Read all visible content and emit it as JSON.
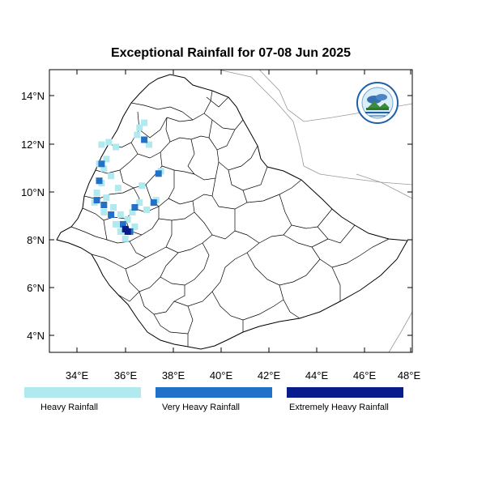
{
  "title": "Exceptional Rainfall for 07-08 Jun 2025",
  "map": {
    "lon_range": [
      32.9,
      48.2
    ],
    "lat_range": [
      3.3,
      15.0
    ],
    "x_ticks": [
      "34°E",
      "36°E",
      "38°E",
      "40°E",
      "42°E",
      "44°E",
      "46°E",
      "48°E"
    ],
    "y_ticks": [
      "4°N",
      "6°N",
      "8°N",
      "10°N",
      "12°N",
      "14°N"
    ],
    "logo_icon": "meteorology-agency-logo"
  },
  "legend": [
    {
      "label": "Heavy Rainfall",
      "color": "#b0eaee"
    },
    {
      "label": "Very Heavy Rainfall",
      "color": "#2171c9"
    },
    {
      "label": "Extremely Heavy Rainfall",
      "color": "#081d8c"
    }
  ],
  "rainfall_cells": {
    "heavy": [
      [
        35.1,
        11.9
      ],
      [
        35.4,
        12.0
      ],
      [
        35.7,
        11.8
      ],
      [
        36.6,
        12.3
      ],
      [
        36.7,
        12.6
      ],
      [
        36.9,
        12.8
      ],
      [
        37.1,
        11.9
      ],
      [
        35.0,
        11.1
      ],
      [
        35.3,
        11.3
      ],
      [
        35.2,
        10.9
      ],
      [
        35.5,
        10.6
      ],
      [
        35.1,
        10.3
      ],
      [
        34.9,
        9.9
      ],
      [
        35.3,
        9.7
      ],
      [
        34.8,
        9.5
      ],
      [
        35.2,
        9.1
      ],
      [
        35.6,
        9.3
      ],
      [
        35.9,
        9.0
      ],
      [
        36.2,
        8.8
      ],
      [
        36.4,
        9.1
      ],
      [
        36.7,
        9.5
      ],
      [
        37.0,
        9.2
      ],
      [
        37.4,
        9.6
      ],
      [
        35.9,
        8.3
      ],
      [
        36.1,
        8.0
      ],
      [
        35.7,
        8.6
      ],
      [
        36.5,
        8.5
      ],
      [
        36.8,
        10.2
      ],
      [
        37.6,
        10.8
      ],
      [
        35.8,
        10.1
      ]
    ],
    "very_heavy": [
      [
        35.1,
        11.1
      ],
      [
        35.0,
        10.4
      ],
      [
        34.9,
        9.6
      ],
      [
        35.2,
        9.4
      ],
      [
        35.5,
        9.0
      ],
      [
        36.0,
        8.6
      ],
      [
        36.3,
        8.3
      ],
      [
        36.5,
        9.3
      ],
      [
        37.3,
        9.5
      ],
      [
        37.5,
        10.7
      ],
      [
        36.9,
        12.1
      ]
    ],
    "extreme": [
      [
        36.1,
        8.4
      ],
      [
        36.2,
        8.3
      ]
    ]
  }
}
